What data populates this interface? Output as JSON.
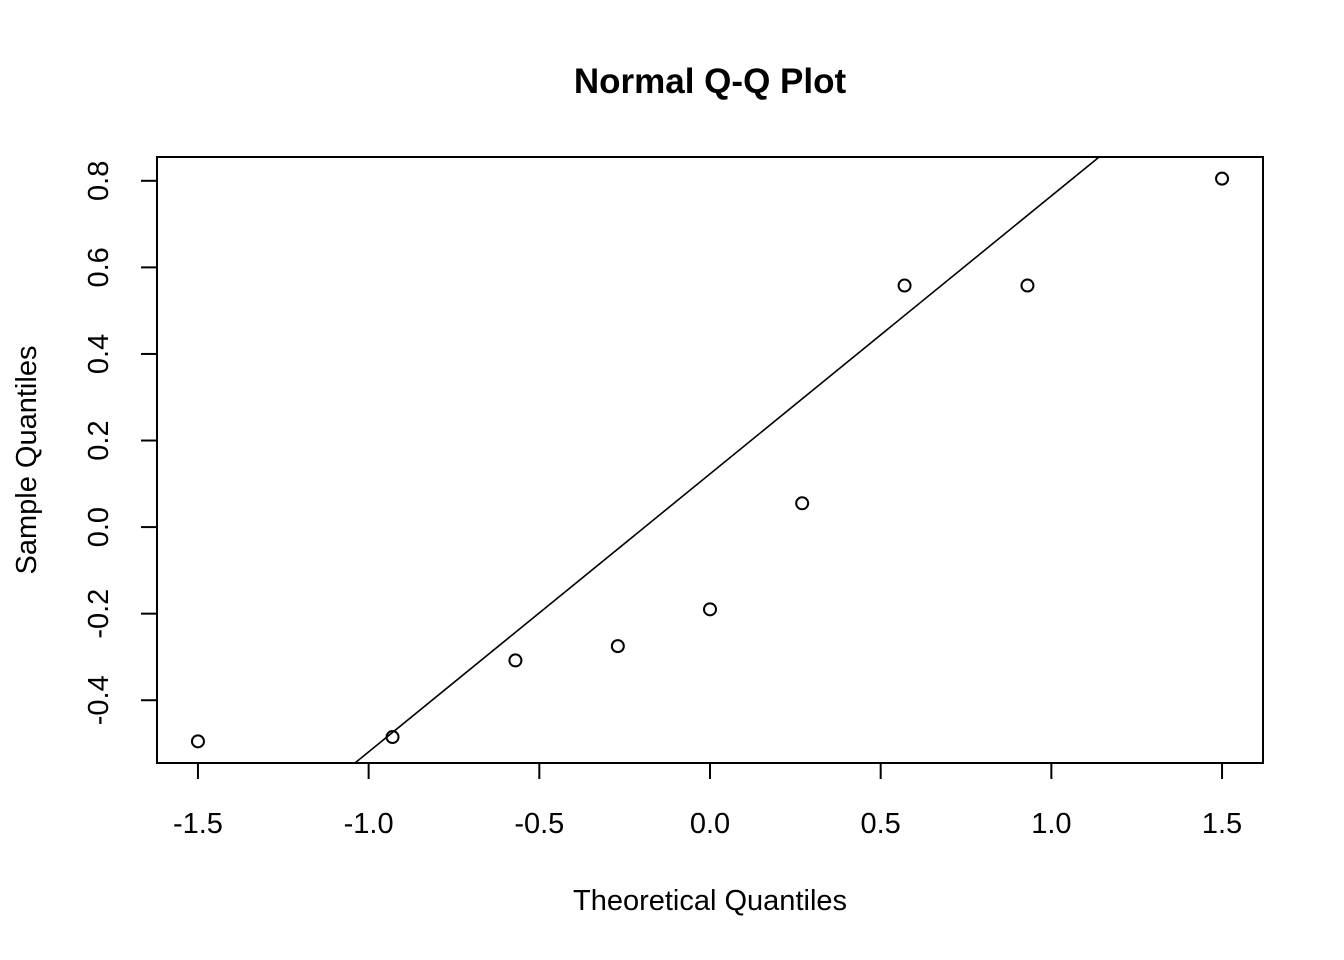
{
  "chart_data": {
    "type": "scatter",
    "title": "Normal Q-Q Plot",
    "xlabel": "Theoretical Quantiles",
    "ylabel": "Sample Quantiles",
    "xlim": [
      -1.62,
      1.62
    ],
    "ylim": [
      -0.545,
      0.855
    ],
    "x_ticks": [
      -1.5,
      -1.0,
      -0.5,
      0.0,
      0.5,
      1.0,
      1.5
    ],
    "x_tick_labels": [
      "-1.5",
      "-1.0",
      "-0.5",
      "0.0",
      "0.5",
      "1.0",
      "1.5"
    ],
    "y_ticks": [
      -0.4,
      -0.2,
      0.0,
      0.2,
      0.4,
      0.6,
      0.8
    ],
    "y_tick_labels": [
      "-0.4",
      "-0.2",
      "0.0",
      "0.2",
      "0.4",
      "0.6",
      "0.8"
    ],
    "grid": false,
    "legend": "none",
    "points": [
      {
        "x": -1.5,
        "y": -0.495
      },
      {
        "x": -0.93,
        "y": -0.485
      },
      {
        "x": -0.57,
        "y": -0.308
      },
      {
        "x": -0.27,
        "y": -0.275
      },
      {
        "x": 0.0,
        "y": -0.19
      },
      {
        "x": 0.27,
        "y": 0.055
      },
      {
        "x": 0.57,
        "y": 0.558
      },
      {
        "x": 0.93,
        "y": 0.558
      },
      {
        "x": 1.5,
        "y": 0.805
      }
    ],
    "reference_line": {
      "type": "qqline",
      "points": [
        {
          "x": -1.04,
          "y": -0.545
        },
        {
          "x": 1.14,
          "y": 0.855
        }
      ]
    },
    "colors": {
      "points": "#000000",
      "line": "#000000",
      "box": "#000000"
    }
  }
}
